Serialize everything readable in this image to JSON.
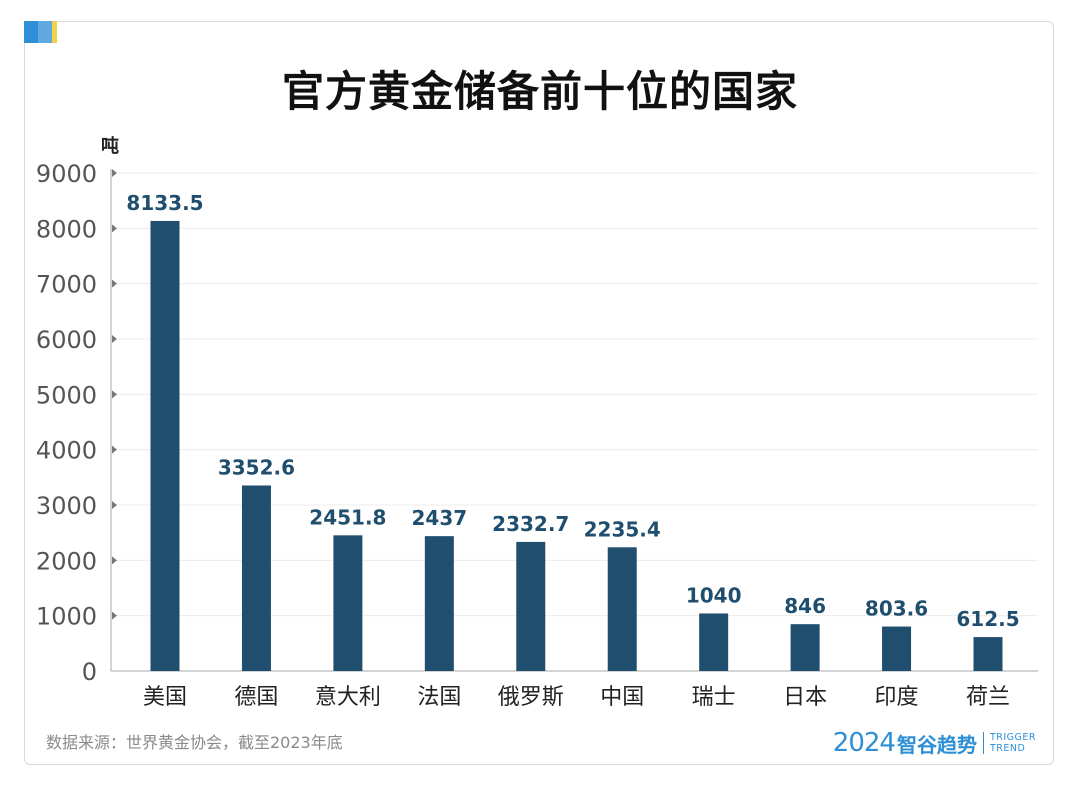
{
  "title": "官方黄金储备前十位的国家",
  "unit_label": "吨",
  "source": "数据来源：世界黄金协会，截至2023年底",
  "brand": {
    "year": "2024",
    "name": "智谷趋势",
    "en_line1": "TRIGGER",
    "en_line2": "TREND"
  },
  "colors": {
    "bar": "#1f4e6e",
    "label": "#1f4e6e",
    "corner": [
      "#2e8fd6",
      "#5fa8e0",
      "#f2d14a"
    ]
  },
  "chart_data": {
    "type": "bar",
    "title": "官方黄金储备前十位的国家",
    "ylabel": "吨",
    "xlabel": "",
    "ylim": [
      0,
      9000
    ],
    "yticks": [
      0,
      1000,
      2000,
      3000,
      4000,
      5000,
      6000,
      7000,
      8000,
      9000
    ],
    "categories": [
      "美国",
      "德国",
      "意大利",
      "法国",
      "俄罗斯",
      "中国",
      "瑞士",
      "日本",
      "印度",
      "荷兰"
    ],
    "values": [
      8133.5,
      3352.6,
      2451.8,
      2437,
      2332.7,
      2235.4,
      1040,
      846,
      803.6,
      612.5
    ],
    "value_labels": [
      "8133.5",
      "3352.6",
      "2451.8",
      "2437",
      "2332.7",
      "2235.4",
      "1040",
      "846",
      "803.6",
      "612.5"
    ],
    "grid": true,
    "legend": "none"
  }
}
